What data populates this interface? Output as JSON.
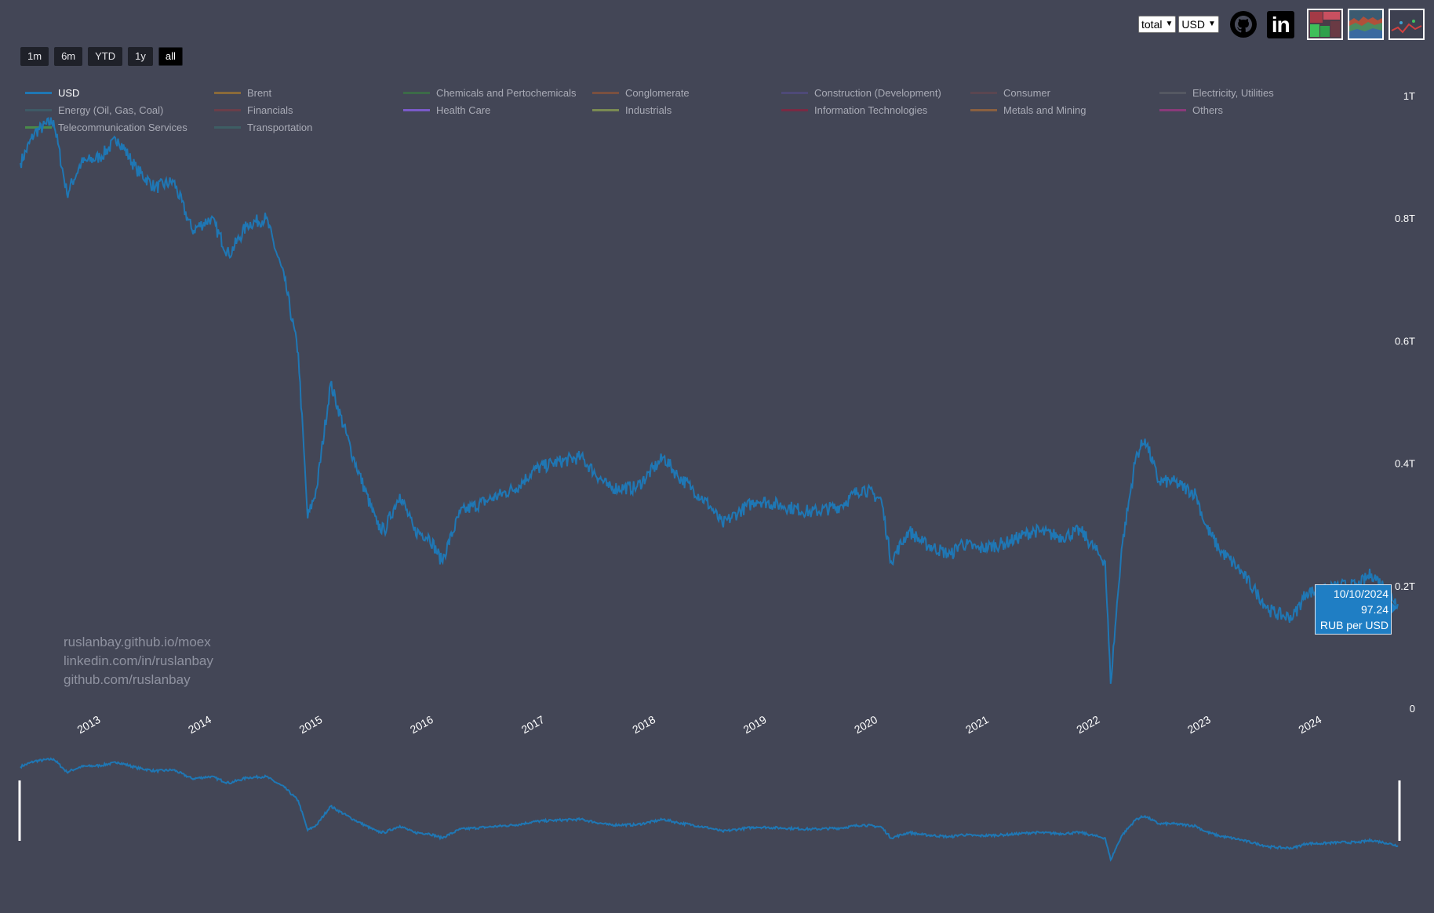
{
  "range_buttons": [
    "1m",
    "6m",
    "YTD",
    "1y",
    "all"
  ],
  "active_range": "all",
  "selectors": {
    "mode": "total",
    "currency": "USD"
  },
  "icons": [
    "github-icon",
    "linkedin-icon"
  ],
  "linkedin_glyph": "in",
  "legend": [
    {
      "label": "USD",
      "color": "#1f77b4",
      "active": true
    },
    {
      "label": "Brent",
      "color": "#8a6a3a"
    },
    {
      "label": "Chemicals and Pertochemicals",
      "color": "#3c6a48"
    },
    {
      "label": "Conglomerate",
      "color": "#7a5040"
    },
    {
      "label": "Construction (Development)",
      "color": "#4e4a78"
    },
    {
      "label": "Consumer",
      "color": "#5a4650"
    },
    {
      "label": "Electricity, Utilities",
      "color": "#555862"
    },
    {
      "label": "Energy (Oil, Gas, Coal)",
      "color": "#3e5a66"
    },
    {
      "label": "Financials",
      "color": "#6a3e4a"
    },
    {
      "label": "Health Care",
      "color": "#7a5ac8"
    },
    {
      "label": "Industrials",
      "color": "#7a8a52"
    },
    {
      "label": "Information Technologies",
      "color": "#7a2a44"
    },
    {
      "label": "Metals and Mining",
      "color": "#8a6040"
    },
    {
      "label": "Others",
      "color": "#8a3a7a"
    },
    {
      "label": "Telecommunication Services",
      "color": "#4a8a4a"
    },
    {
      "label": "Transportation",
      "color": "#3e5e64"
    }
  ],
  "credits": [
    "ruslanbay.github.io/moex",
    "linkedin.com/in/ruslanbay",
    "github.com/ruslanbay"
  ],
  "tooltip": {
    "date": "10/10/2024",
    "value": "97.24",
    "unit": "RUB per USD"
  },
  "chart_data": {
    "type": "line",
    "title": "",
    "xlabel": "",
    "ylabel": "",
    "x_ticks": [
      "2013",
      "2014",
      "2015",
      "2016",
      "2017",
      "2018",
      "2019",
      "2020",
      "2021",
      "2022",
      "2023",
      "2024"
    ],
    "y_ticks": [
      "0",
      "0.2T",
      "0.4T",
      "0.6T",
      "0.8T",
      "1T"
    ],
    "ylim": [
      0,
      1000000000000
    ],
    "xlim": [
      "2012-05-15",
      "2024-10-10"
    ],
    "line_color": "#1f77b4",
    "legend_position": "top-left",
    "grid": false,
    "series": [
      {
        "name": "USD",
        "x": [
          "2012-05-15",
          "2012-07-01",
          "2012-09-01",
          "2012-10-15",
          "2012-12-01",
          "2013-02-01",
          "2013-04-01",
          "2013-06-01",
          "2013-08-01",
          "2013-10-01",
          "2013-12-01",
          "2014-02-01",
          "2014-04-01",
          "2014-06-01",
          "2014-08-01",
          "2014-10-01",
          "2014-11-15",
          "2014-12-16",
          "2015-01-15",
          "2015-03-01",
          "2015-05-15",
          "2015-08-01",
          "2015-08-25",
          "2015-10-15",
          "2015-12-01",
          "2016-01-20",
          "2016-03-01",
          "2016-05-01",
          "2016-08-01",
          "2016-11-01",
          "2017-01-01",
          "2017-03-01",
          "2017-06-01",
          "2017-09-01",
          "2017-12-01",
          "2018-03-01",
          "2018-04-15",
          "2018-06-01",
          "2018-08-01",
          "2018-09-10",
          "2018-11-01",
          "2019-01-01",
          "2019-04-01",
          "2019-07-01",
          "2019-10-01",
          "2019-12-15",
          "2020-02-15",
          "2020-03-18",
          "2020-05-15",
          "2020-07-01",
          "2020-10-01",
          "2020-11-01",
          "2021-01-01",
          "2021-04-01",
          "2021-07-01",
          "2021-10-01",
          "2021-12-01",
          "2022-02-01",
          "2022-02-20",
          "2022-03-10",
          "2022-04-15",
          "2022-06-01",
          "2022-07-01",
          "2022-08-15",
          "2022-10-01",
          "2022-12-15",
          "2023-01-15",
          "2023-03-01",
          "2023-05-01",
          "2023-07-01",
          "2023-08-15",
          "2023-10-01",
          "2023-11-01",
          "2023-12-15",
          "2024-02-01",
          "2024-04-01",
          "2024-06-01",
          "2024-07-15",
          "2024-09-01",
          "2024-10-10"
        ],
        "values": [
          890,
          940,
          960,
          840,
          890,
          900,
          930,
          880,
          850,
          860,
          780,
          800,
          740,
          790,
          800,
          700,
          580,
          310,
          360,
          530,
          410,
          300,
          290,
          350,
          290,
          280,
          240,
          320,
          340,
          360,
          390,
          400,
          410,
          360,
          360,
          410,
          380,
          360,
          330,
          300,
          320,
          340,
          330,
          320,
          330,
          360,
          340,
          240,
          290,
          270,
          250,
          270,
          260,
          270,
          290,
          280,
          290,
          250,
          240,
          40,
          260,
          410,
          440,
          370,
          370,
          350,
          300,
          260,
          230,
          190,
          160,
          150,
          150,
          190,
          190,
          200,
          200,
          220,
          195,
          170
        ]
      }
    ],
    "units": "values in billions (1T = 1000)"
  }
}
